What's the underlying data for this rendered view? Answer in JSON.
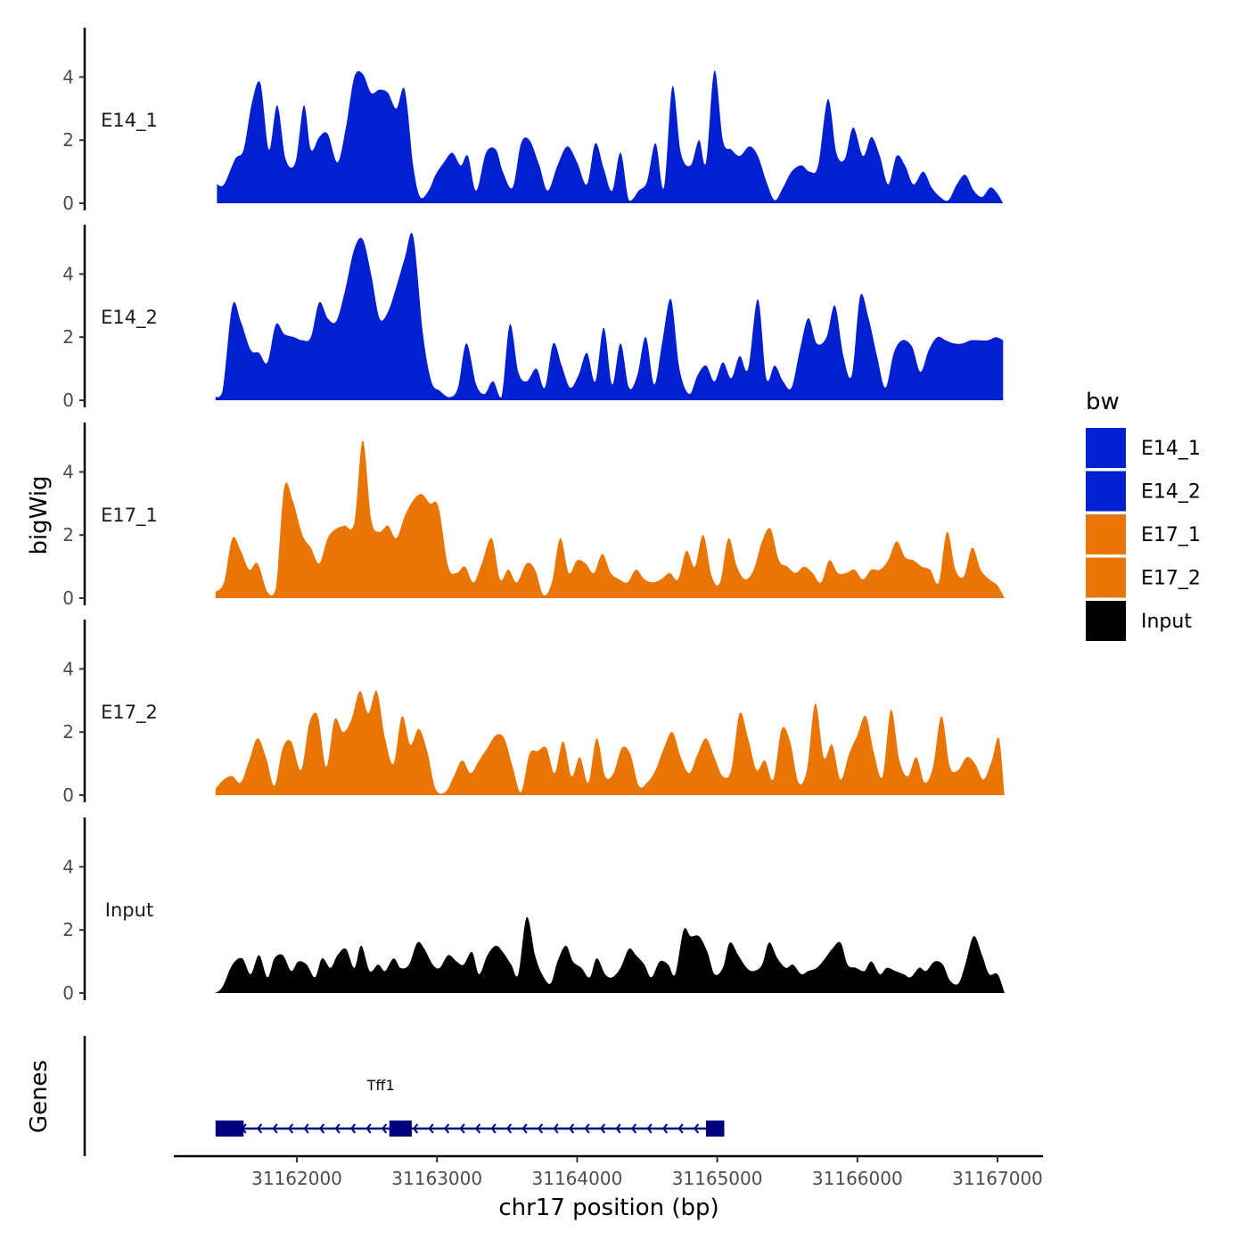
{
  "chart_data": {
    "type": "area",
    "chromosome": "chr17",
    "xlabel": "chr17 position (bp)",
    "ylabel": "bigWig",
    "genes_label": "Genes",
    "xlim": [
      31161200,
      31167400
    ],
    "x_ticks": [
      31162000,
      31163000,
      31164000,
      31165000,
      31166000,
      31167000
    ],
    "x_tick_labels": [
      "31162000",
      "31163000",
      "31164000",
      "31165000",
      "31166000",
      "31167000"
    ],
    "ylim": [
      0,
      5.5
    ],
    "y_ticks": [
      0,
      2,
      4
    ],
    "y_tick_labels": [
      "0",
      "2",
      "4"
    ],
    "legend": {
      "title": "bw",
      "entries": [
        {
          "label": "E14_1",
          "color": "#0220D0"
        },
        {
          "label": "E14_2",
          "color": "#0220D0"
        },
        {
          "label": "E17_1",
          "color": "#E87504"
        },
        {
          "label": "E17_2",
          "color": "#E87504"
        },
        {
          "label": "Input",
          "color": "#000000"
        }
      ]
    },
    "series": [
      {
        "name": "E14_1",
        "label": "E14_1",
        "color": "#0220D0",
        "x": [
          31161430,
          31161480,
          31161560,
          31161620,
          31161680,
          31161740,
          31161800,
          31161860,
          31161920,
          31161990,
          31162050,
          31162100,
          31162160,
          31162220,
          31162290,
          31162350,
          31162410,
          31162470,
          31162530,
          31162590,
          31162650,
          31162710,
          31162770,
          31162830,
          31162880,
          31162940,
          31162990,
          31163050,
          31163110,
          31163170,
          31163220,
          31163280,
          31163350,
          31163420,
          31163470,
          31163540,
          31163600,
          31163660,
          31163730,
          31163790,
          31163860,
          31163930,
          31164000,
          31164070,
          31164130,
          31164190,
          31164250,
          31164310,
          31164370,
          31164440,
          31164500,
          31164560,
          31164620,
          31164680,
          31164740,
          31164810,
          31164870,
          31164920,
          31164980,
          31165040,
          31165100,
          31165160,
          31165230,
          31165290,
          31165350,
          31165410,
          31165470,
          31165530,
          31165600,
          31165660,
          31165720,
          31165790,
          31165850,
          31165910,
          31165970,
          31166040,
          31166100,
          31166160,
          31166220,
          31166280,
          31166340,
          31166400,
          31166470,
          31166530,
          31166590,
          31166650,
          31166710,
          31166770,
          31166830,
          31166890,
          31166950,
          31167000,
          31167040
        ],
        "y": [
          0.6,
          0.6,
          1.4,
          1.7,
          3.2,
          3.8,
          1.7,
          3.1,
          1.4,
          1.3,
          3.1,
          1.7,
          2.1,
          2.2,
          1.3,
          2.4,
          4.0,
          4.1,
          3.5,
          3.6,
          3.5,
          3.0,
          3.6,
          1.2,
          0.2,
          0.4,
          0.9,
          1.3,
          1.6,
          1.2,
          1.5,
          0.4,
          1.6,
          1.7,
          1.0,
          0.5,
          1.9,
          2.0,
          1.2,
          0.4,
          1.2,
          1.8,
          1.3,
          0.6,
          1.9,
          1.1,
          0.4,
          1.6,
          0.1,
          0.4,
          0.7,
          1.9,
          0.5,
          3.7,
          1.6,
          1.2,
          2.0,
          1.3,
          4.2,
          2.0,
          1.7,
          1.5,
          1.8,
          1.5,
          0.7,
          0.1,
          0.5,
          1.0,
          1.2,
          1.0,
          1.2,
          3.3,
          1.6,
          1.4,
          2.4,
          1.5,
          2.1,
          1.5,
          0.6,
          1.5,
          1.2,
          0.6,
          1.0,
          0.5,
          0.2,
          0.1,
          0.6,
          0.9,
          0.4,
          0.2,
          0.5,
          0.3,
          0.0
        ]
      },
      {
        "name": "E14_2",
        "label": "E14_2",
        "color": "#0220D0",
        "x": [
          31161420,
          31161470,
          31161540,
          31161600,
          31161670,
          31161730,
          31161790,
          31161850,
          31161910,
          31161980,
          31162040,
          31162100,
          31162160,
          31162220,
          31162280,
          31162340,
          31162410,
          31162470,
          31162530,
          31162590,
          31162650,
          31162710,
          31162770,
          31162830,
          31162900,
          31162960,
          31163020,
          31163090,
          31163150,
          31163210,
          31163280,
          31163340,
          31163400,
          31163460,
          31163520,
          31163580,
          31163640,
          31163710,
          31163770,
          31163830,
          31163890,
          31163950,
          31164010,
          31164070,
          31164130,
          31164190,
          31164250,
          31164310,
          31164370,
          31164430,
          31164490,
          31164550,
          31164610,
          31164670,
          31164730,
          31164800,
          31164860,
          31164920,
          31164980,
          31165040,
          31165100,
          31165160,
          31165220,
          31165290,
          31165350,
          31165410,
          31165470,
          31165530,
          31165590,
          31165650,
          31165710,
          31165780,
          31165840,
          31165900,
          31165960,
          31166020,
          31166080,
          31166140,
          31166200,
          31166260,
          31166320,
          31166390,
          31166450,
          31166510,
          31166570,
          31166630,
          31166690,
          31166750,
          31166810,
          31166870,
          31166930,
          31166990,
          31167040
        ],
        "y": [
          0.1,
          0.3,
          3.0,
          2.5,
          1.6,
          1.5,
          1.2,
          2.4,
          2.1,
          2.0,
          1.9,
          2.0,
          3.1,
          2.6,
          2.5,
          3.4,
          4.8,
          5.1,
          4.0,
          2.6,
          2.8,
          3.6,
          4.5,
          5.2,
          2.1,
          0.6,
          0.3,
          0.1,
          0.4,
          1.8,
          0.5,
          0.2,
          0.6,
          0.1,
          2.4,
          0.9,
          0.6,
          1.0,
          0.4,
          1.8,
          1.1,
          0.4,
          0.8,
          1.5,
          0.6,
          2.3,
          0.5,
          1.8,
          0.4,
          0.8,
          2.0,
          0.5,
          1.9,
          3.2,
          1.0,
          0.2,
          0.8,
          1.1,
          0.6,
          1.2,
          0.7,
          1.4,
          1.0,
          3.2,
          0.7,
          1.1,
          0.6,
          0.4,
          1.6,
          2.6,
          1.8,
          2.0,
          3.0,
          1.4,
          0.8,
          3.3,
          2.6,
          1.4,
          0.4,
          1.5,
          1.9,
          1.7,
          0.9,
          1.6,
          2.0,
          1.9,
          1.8,
          1.8,
          1.9,
          1.9,
          1.9,
          2.0,
          1.9
        ]
      },
      {
        "name": "E17_1",
        "label": "E17_1",
        "color": "#E87504",
        "x": [
          31161420,
          31161480,
          31161540,
          31161600,
          31161660,
          31161720,
          31161790,
          31161850,
          31161910,
          31161970,
          31162040,
          31162100,
          31162160,
          31162220,
          31162280,
          31162340,
          31162410,
          31162470,
          31162530,
          31162590,
          31162650,
          31162710,
          31162770,
          31162830,
          31162890,
          31162950,
          31163010,
          31163080,
          31163140,
          31163200,
          31163260,
          31163320,
          31163390,
          31163450,
          31163510,
          31163570,
          31163640,
          31163700,
          31163760,
          31163820,
          31163880,
          31163940,
          31164000,
          31164060,
          31164120,
          31164180,
          31164240,
          31164300,
          31164360,
          31164420,
          31164480,
          31164540,
          31164600,
          31164660,
          31164720,
          31164780,
          31164840,
          31164900,
          31164960,
          31165020,
          31165080,
          31165140,
          31165200,
          31165260,
          31165320,
          31165380,
          31165440,
          31165500,
          31165560,
          31165620,
          31165680,
          31165740,
          31165800,
          31165860,
          31165920,
          31165980,
          31166040,
          31166100,
          31166160,
          31166220,
          31166280,
          31166340,
          31166400,
          31166460,
          31166520,
          31166580,
          31166640,
          31166700,
          31166760,
          31166820,
          31166880,
          31166940,
          31167000,
          31167050
        ],
        "y": [
          0.2,
          0.5,
          1.9,
          1.5,
          0.9,
          1.1,
          0.2,
          0.3,
          3.5,
          3.1,
          2.0,
          1.6,
          1.1,
          1.9,
          2.2,
          2.3,
          2.4,
          5.0,
          2.5,
          2.1,
          2.3,
          1.9,
          2.6,
          3.1,
          3.3,
          3.0,
          2.9,
          1.0,
          0.8,
          1.0,
          0.5,
          1.1,
          1.9,
          0.6,
          0.9,
          0.5,
          1.1,
          0.9,
          0.1,
          0.5,
          1.9,
          0.8,
          1.2,
          1.1,
          0.8,
          1.4,
          0.8,
          0.6,
          0.5,
          0.9,
          0.6,
          0.5,
          0.6,
          0.8,
          0.6,
          1.5,
          1.0,
          2.0,
          0.7,
          0.5,
          1.9,
          1.0,
          0.6,
          0.9,
          1.8,
          2.2,
          1.2,
          1.0,
          0.8,
          1.0,
          0.8,
          0.5,
          1.2,
          0.8,
          0.8,
          0.9,
          0.6,
          0.9,
          0.9,
          1.2,
          1.8,
          1.3,
          1.2,
          1.0,
          0.9,
          0.5,
          2.1,
          0.9,
          0.7,
          1.6,
          0.9,
          0.6,
          0.4,
          0.0
        ]
      },
      {
        "name": "E17_2",
        "label": "E17_2",
        "color": "#E87504",
        "x": [
          31161420,
          31161480,
          31161540,
          31161600,
          31161660,
          31161720,
          31161780,
          31161840,
          31161900,
          31161960,
          31162030,
          31162090,
          31162150,
          31162210,
          31162270,
          31162330,
          31162390,
          31162450,
          31162510,
          31162570,
          31162630,
          31162690,
          31162750,
          31162810,
          31162870,
          31162930,
          31162990,
          31163060,
          31163120,
          31163180,
          31163240,
          31163300,
          31163360,
          31163420,
          31163480,
          31163540,
          31163600,
          31163660,
          31163720,
          31163780,
          31163840,
          31163900,
          31163960,
          31164020,
          31164080,
          31164140,
          31164200,
          31164260,
          31164320,
          31164380,
          31164440,
          31164500,
          31164560,
          31164620,
          31164680,
          31164740,
          31164800,
          31164860,
          31164920,
          31164980,
          31165040,
          31165100,
          31165160,
          31165220,
          31165280,
          31165340,
          31165400,
          31165460,
          31165520,
          31165580,
          31165640,
          31165700,
          31165760,
          31165820,
          31165880,
          31165940,
          31166000,
          31166060,
          31166120,
          31166180,
          31166240,
          31166300,
          31166360,
          31166420,
          31166480,
          31166540,
          31166600,
          31166660,
          31166720,
          31166780,
          31166840,
          31166900,
          31166960,
          31167010,
          31167050
        ],
        "y": [
          0.2,
          0.5,
          0.6,
          0.4,
          1.1,
          1.8,
          1.2,
          0.3,
          1.5,
          1.7,
          0.8,
          2.3,
          2.5,
          0.9,
          2.4,
          2.0,
          2.4,
          3.3,
          2.6,
          3.3,
          1.8,
          1.0,
          2.5,
          1.6,
          2.1,
          1.4,
          0.2,
          0.1,
          0.6,
          1.1,
          0.7,
          1.1,
          1.5,
          1.9,
          1.8,
          0.9,
          0.1,
          1.3,
          1.4,
          1.5,
          0.7,
          1.7,
          0.6,
          1.2,
          0.4,
          1.8,
          0.6,
          0.7,
          1.5,
          1.3,
          0.3,
          0.4,
          0.8,
          1.5,
          2.0,
          1.2,
          0.7,
          1.3,
          1.8,
          1.2,
          0.6,
          0.8,
          2.6,
          1.8,
          0.8,
          1.1,
          0.5,
          2.1,
          1.7,
          0.4,
          0.8,
          2.9,
          1.2,
          1.6,
          0.5,
          1.3,
          1.9,
          2.5,
          1.3,
          0.6,
          2.7,
          1.1,
          0.6,
          1.2,
          0.4,
          0.9,
          2.5,
          0.9,
          0.8,
          1.2,
          1.0,
          0.5,
          1.1,
          1.8,
          0.0
        ]
      },
      {
        "name": "Input",
        "label": "Input",
        "color": "#000000",
        "x": [
          31161420,
          31161470,
          31161540,
          31161610,
          31161670,
          31161730,
          31161790,
          31161840,
          31161900,
          31161960,
          31162010,
          31162070,
          31162130,
          31162180,
          31162240,
          31162290,
          31162350,
          31162410,
          31162460,
          31162520,
          31162580,
          31162630,
          31162690,
          31162740,
          31162800,
          31162860,
          31162910,
          31162970,
          31163020,
          31163080,
          31163140,
          31163190,
          31163250,
          31163300,
          31163360,
          31163420,
          31163470,
          31163530,
          31163580,
          31163640,
          31163700,
          31163750,
          31163810,
          31163860,
          31163920,
          31163970,
          31164030,
          31164090,
          31164140,
          31164200,
          31164250,
          31164310,
          31164370,
          31164420,
          31164480,
          31164530,
          31164590,
          31164650,
          31164700,
          31164760,
          31164810,
          31164870,
          31164930,
          31164980,
          31165040,
          31165090,
          31165150,
          31165210,
          31165260,
          31165320,
          31165370,
          31165430,
          31165490,
          31165540,
          31165600,
          31165650,
          31165710,
          31165770,
          31165820,
          31165880,
          31165930,
          31165990,
          31166050,
          31166100,
          31166160,
          31166210,
          31166270,
          31166330,
          31166380,
          31166440,
          31166490,
          31166550,
          31166610,
          31166660,
          31166720,
          31166770,
          31166830,
          31166890,
          31166940,
          31167000,
          31167050
        ],
        "y": [
          0.0,
          0.2,
          0.9,
          1.1,
          0.6,
          1.2,
          0.5,
          1.1,
          1.2,
          0.7,
          1.0,
          0.9,
          0.5,
          1.1,
          0.8,
          1.2,
          1.4,
          0.8,
          1.5,
          0.7,
          0.9,
          0.7,
          1.1,
          0.8,
          0.9,
          1.6,
          1.4,
          0.9,
          0.8,
          1.2,
          1.0,
          0.9,
          1.3,
          0.6,
          1.2,
          1.5,
          1.3,
          0.9,
          0.6,
          2.4,
          1.2,
          0.6,
          0.3,
          1.0,
          1.5,
          1.0,
          0.8,
          0.5,
          1.1,
          0.6,
          0.5,
          0.8,
          1.4,
          1.2,
          0.9,
          0.5,
          1.0,
          0.9,
          0.6,
          2.0,
          1.8,
          1.8,
          1.3,
          0.6,
          0.8,
          1.6,
          1.2,
          0.8,
          0.7,
          0.9,
          1.6,
          1.1,
          0.8,
          0.9,
          0.6,
          0.7,
          0.8,
          1.1,
          1.4,
          1.6,
          0.9,
          0.8,
          0.7,
          1.0,
          0.6,
          0.8,
          0.7,
          0.6,
          0.5,
          0.8,
          0.7,
          1.0,
          0.9,
          0.4,
          0.3,
          0.9,
          1.8,
          1.2,
          0.6,
          0.6,
          0.0
        ]
      }
    ],
    "genes": [
      {
        "name": "Tff1",
        "strand": "-",
        "start": 31161420,
        "end": 31165050,
        "exons": [
          [
            31161420,
            31161620
          ],
          [
            31162660,
            31162820
          ],
          [
            31164920,
            31165050
          ]
        ]
      }
    ]
  }
}
